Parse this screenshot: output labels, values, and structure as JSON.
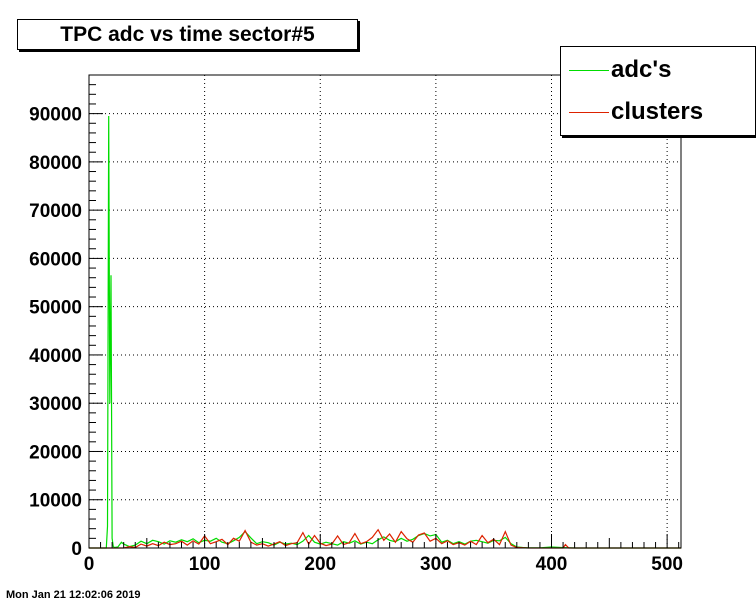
{
  "title": "TPC adc vs time sector#5",
  "datestamp": "Mon Jan 21 12:02:06 2019",
  "legend": [
    {
      "label": "adc's",
      "color": "#00dd00"
    },
    {
      "label": "clusters",
      "color": "#dd2200"
    }
  ],
  "chart_data": {
    "type": "line",
    "title": "TPC adc vs time sector#5",
    "xlabel": "",
    "ylabel": "",
    "xlim": [
      0,
      512
    ],
    "ylim": [
      0,
      98000
    ],
    "grid": true,
    "legend_position": "top-right",
    "x_ticks": [
      0,
      100,
      200,
      300,
      400,
      500
    ],
    "y_ticks": [
      0,
      10000,
      20000,
      30000,
      40000,
      50000,
      60000,
      70000,
      80000,
      90000
    ],
    "series": [
      {
        "name": "adc's",
        "color": "#00dd00",
        "x": [
          0,
          15,
          16,
          17,
          18,
          19,
          20,
          21,
          22,
          25,
          28,
          30,
          35,
          40,
          45,
          50,
          55,
          60,
          65,
          70,
          75,
          80,
          85,
          90,
          95,
          100,
          105,
          110,
          115,
          120,
          125,
          130,
          135,
          140,
          145,
          150,
          155,
          160,
          165,
          170,
          175,
          180,
          185,
          190,
          195,
          200,
          205,
          210,
          215,
          220,
          225,
          230,
          235,
          240,
          245,
          250,
          255,
          260,
          265,
          270,
          275,
          280,
          285,
          290,
          295,
          300,
          305,
          310,
          315,
          320,
          325,
          330,
          335,
          340,
          345,
          350,
          355,
          360,
          365,
          370,
          375,
          380,
          390,
          400,
          410,
          420,
          430,
          440,
          450,
          460,
          470,
          480,
          490,
          500,
          512
        ],
        "values": [
          0,
          0,
          4500,
          89500,
          30000,
          56500,
          2000,
          300,
          100,
          200,
          1200,
          800,
          300,
          600,
          1400,
          900,
          1600,
          1300,
          800,
          1500,
          1200,
          1700,
          1300,
          1900,
          1100,
          1600,
          1400,
          2000,
          1200,
          900,
          1500,
          2200,
          3400,
          2100,
          900,
          1300,
          1100,
          600,
          1200,
          800,
          1000,
          700,
          1400,
          2600,
          1200,
          800,
          1200,
          900,
          600,
          1300,
          1000,
          1500,
          800,
          1200,
          900,
          1700,
          2300,
          1600,
          1300,
          2000,
          1400,
          1800,
          2600,
          3000,
          2500,
          2800,
          1200,
          1600,
          900,
          1300,
          800,
          1400,
          1600,
          1300,
          1000,
          1600,
          1500,
          2200,
          900,
          200,
          100,
          50,
          20,
          200,
          80,
          0,
          0,
          0,
          0,
          0,
          0,
          0,
          0,
          0,
          0
        ]
      },
      {
        "name": "clusters",
        "color": "#dd2200",
        "x": [
          0,
          30,
          35,
          40,
          45,
          50,
          55,
          60,
          65,
          70,
          75,
          80,
          85,
          90,
          95,
          100,
          105,
          110,
          115,
          120,
          125,
          130,
          135,
          140,
          145,
          150,
          155,
          160,
          165,
          170,
          175,
          180,
          185,
          190,
          195,
          200,
          205,
          210,
          215,
          220,
          225,
          230,
          235,
          240,
          245,
          250,
          255,
          260,
          265,
          270,
          275,
          280,
          285,
          290,
          295,
          300,
          305,
          310,
          315,
          320,
          325,
          330,
          335,
          340,
          345,
          350,
          355,
          360,
          365,
          370,
          380,
          400,
          410,
          412,
          415,
          420,
          512
        ],
        "values": [
          0,
          0,
          300,
          100,
          800,
          400,
          900,
          500,
          1200,
          700,
          900,
          1400,
          600,
          1500,
          800,
          2500,
          900,
          1300,
          1800,
          700,
          2000,
          1400,
          3600,
          1200,
          600,
          900,
          400,
          800,
          1300,
          500,
          900,
          1100,
          3200,
          800,
          2600,
          1000,
          500,
          800,
          2500,
          700,
          1100,
          3000,
          900,
          1300,
          2200,
          3800,
          1600,
          2900,
          1200,
          3400,
          1900,
          1200,
          2700,
          3100,
          1400,
          2000,
          900,
          1500,
          700,
          1100,
          600,
          1400,
          700,
          2600,
          1100,
          1800,
          700,
          3400,
          600,
          100,
          0,
          0,
          0,
          700,
          0,
          0,
          0
        ]
      }
    ]
  }
}
